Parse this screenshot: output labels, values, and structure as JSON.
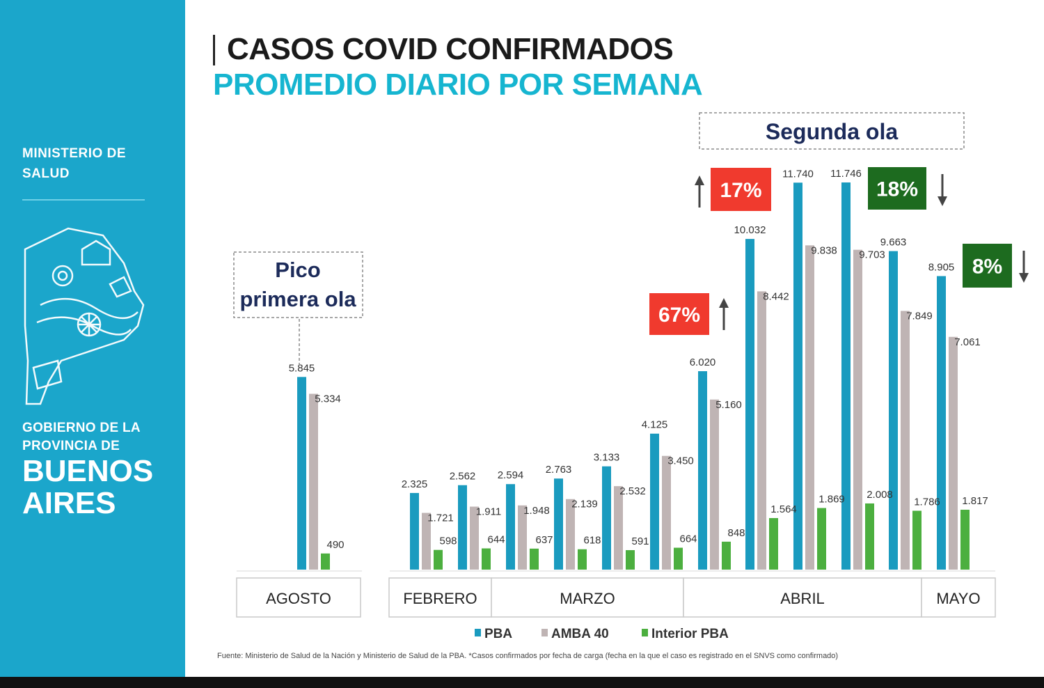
{
  "sidebar": {
    "ministry": "MINISTERIO DE SALUD",
    "gob_line1": "GOBIERNO DE LA",
    "gob_line2": "PROVINCIA DE",
    "province": "BUENOS AIRES"
  },
  "colors": {
    "sidebar": "#1ba6cb",
    "pba": "#1a9bbf",
    "amba": "#bfb4b4",
    "interior": "#4caf3f",
    "increase": "#f03a2e",
    "decrease": "#1d6b1f",
    "navy": "#1c2b5a"
  },
  "annotations": {
    "pico": "Pico primera ola",
    "segunda": "Segunda ola",
    "badges": [
      {
        "text": "17%",
        "direction": "up",
        "kind": "increase"
      },
      {
        "text": "67%",
        "direction": "up",
        "kind": "increase"
      },
      {
        "text": "18%",
        "direction": "down",
        "kind": "decrease"
      },
      {
        "text": "8%",
        "direction": "down",
        "kind": "decrease"
      }
    ]
  },
  "footnote": "Fuente: Ministerio de Salud de la Nación y Ministerio de Salud de la PBA. *Casos confirmados por fecha de carga (fecha en la que el caso es registrado en el SNVS como confirmado)",
  "chart_data": {
    "type": "bar",
    "title": "CASOS COVID CONFIRMADOS",
    "subtitle": "PROMEDIO DIARIO POR SEMANA",
    "months": [
      {
        "label": "AGOSTO",
        "span": 1
      },
      {
        "label": "FEBRERO",
        "span": 2
      },
      {
        "label": "MARZO",
        "span": 4
      },
      {
        "label": "ABRIL",
        "span": 5
      },
      {
        "label": "MAYO",
        "span": 1
      }
    ],
    "series": [
      {
        "name": "PBA",
        "values": [
          5845,
          2325,
          2562,
          2594,
          2763,
          3133,
          4125,
          6020,
          10032,
          11740,
          11746,
          9663,
          8905
        ],
        "labels": [
          "5.845",
          "2.325",
          "2.562",
          "2.594",
          "2.763",
          "3.133",
          "4.125",
          "6.020",
          "10.032",
          "11.740",
          "11.746",
          "9.663",
          "8.905"
        ]
      },
      {
        "name": "AMBA 40",
        "values": [
          5334,
          1721,
          1911,
          1948,
          2139,
          2532,
          3450,
          5160,
          8442,
          9838,
          9703,
          7849,
          7061
        ],
        "labels": [
          "5.334",
          "1.721",
          "1.911",
          "1.948",
          "2.139",
          "2.532",
          "3.450",
          "5.160",
          "8.442",
          "9.838",
          "9.703",
          "7.849",
          "7.061"
        ]
      },
      {
        "name": "Interior PBA",
        "values": [
          490,
          598,
          644,
          637,
          618,
          591,
          664,
          848,
          1564,
          1869,
          2008,
          1786,
          1817
        ],
        "labels": [
          "490",
          "598",
          "644",
          "637",
          "618",
          "591",
          "664",
          "848",
          "1.564",
          "1.869",
          "2.008",
          "1.786",
          "1.817"
        ]
      }
    ],
    "ylim": [
      0,
      11746
    ],
    "legend": "bottom-center",
    "grid": false
  }
}
